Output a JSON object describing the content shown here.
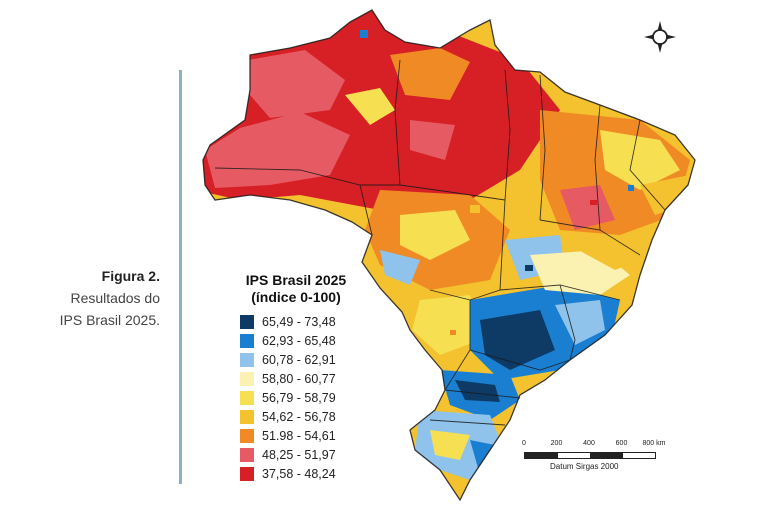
{
  "caption": {
    "figure_label": "Figura 2.",
    "line1": "Resultados do",
    "line2": "IPS Brasil 2025."
  },
  "legend": {
    "title_line1": "IPS Brasil 2025",
    "title_line2": "(índice 0-100)",
    "items": [
      {
        "label": "65,49 - 73,48",
        "color": "#0d3b66"
      },
      {
        "label": "62,93 - 65,48",
        "color": "#1b7fd1"
      },
      {
        "label": "60,78 - 62,91",
        "color": "#8fc3ec"
      },
      {
        "label": "58,80 - 60,77",
        "color": "#fbf1b0"
      },
      {
        "label": "56,79 - 58,79",
        "color": "#f6e052"
      },
      {
        "label": "54,62 - 56,78",
        "color": "#f4c12f"
      },
      {
        "label": "51.98 - 54,61",
        "color": "#f08a24"
      },
      {
        "label": "48,25 - 51,97",
        "color": "#e65a64"
      },
      {
        "label": "37,58 - 48,24",
        "color": "#d71f26"
      }
    ]
  },
  "scale_bar": {
    "ticks": [
      "0",
      "200",
      "400",
      "600",
      "800 km"
    ],
    "datum": "Datum Sirgas 2000"
  },
  "compass": {
    "icon": "compass-rose-icon"
  }
}
